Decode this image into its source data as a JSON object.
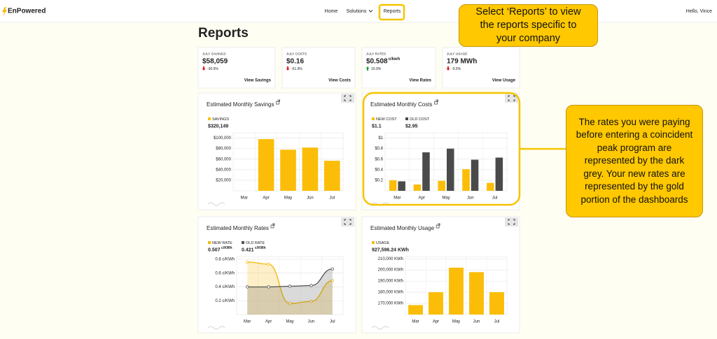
{
  "nav": {
    "brand": "EnPowered",
    "links": [
      "Home",
      "Solutions",
      "Reports"
    ],
    "greeting": "Hello, Vince"
  },
  "page_title": "Reports",
  "kpis": [
    {
      "label": "JULY SAVINGS",
      "value": "$58,059",
      "change": "-30.5%",
      "direction": "down",
      "link": "View Savings"
    },
    {
      "label": "JULY COSTS",
      "value": "$0.16",
      "change": "-61.9%",
      "direction": "down",
      "link": "View Costs"
    },
    {
      "label": "JULY RATES",
      "value": "$0.508",
      "unit": "c/kwh",
      "change": "10.9%",
      "direction": "up",
      "link": "View Rates"
    },
    {
      "label": "JULY USAGE",
      "value": "179 MWh",
      "change": "-9.5%",
      "direction": "down",
      "link": "View Usage"
    }
  ],
  "chart_data": [
    {
      "type": "bar",
      "title": "Estimated Monthly Savings",
      "categories": [
        "Mar",
        "Apr",
        "May",
        "Jun",
        "Jul"
      ],
      "series": [
        {
          "name": "SAVINGS",
          "legend_value": "$320,149",
          "color": "#fbbd08",
          "values": [
            0,
            98000,
            78000,
            82000,
            57000
          ]
        }
      ],
      "ylim": [
        0,
        110000
      ],
      "yticks": [
        {
          "value": 20000,
          "label": "$20,000"
        },
        {
          "value": 40000,
          "label": "$40,000"
        },
        {
          "value": 60000,
          "label": "$60,000"
        },
        {
          "value": 80000,
          "label": "$80,000"
        },
        {
          "value": 100000,
          "label": "$100,000"
        }
      ],
      "grid": true
    },
    {
      "type": "bar",
      "title": "Estimated Monthly Costs",
      "categories": [
        "Mar",
        "Apr",
        "May",
        "Jun",
        "Jul"
      ],
      "series": [
        {
          "name": "NEW COST",
          "legend_value": "$1.1",
          "color": "#fbbd08",
          "values": [
            0.2,
            0.12,
            0.19,
            0.41,
            0.15
          ]
        },
        {
          "name": "OLD COST",
          "legend_value": "$2.95",
          "color": "#4a4a4a",
          "values": [
            0.18,
            0.73,
            0.8,
            0.59,
            0.63
          ]
        }
      ],
      "ylim": [
        0,
        1.1
      ],
      "yticks": [
        {
          "value": 0.2,
          "label": "$0.2"
        },
        {
          "value": 0.4,
          "label": "$0.4"
        },
        {
          "value": 0.6,
          "label": "$0.6"
        },
        {
          "value": 0.8,
          "label": "$0.8"
        },
        {
          "value": 1,
          "label": "$1"
        }
      ],
      "grid": true
    },
    {
      "type": "line",
      "title": "Estimated Monthly Rates",
      "categories": [
        "Mar",
        "Apr",
        "May",
        "Jun",
        "Jul"
      ],
      "series": [
        {
          "name": "NEW RATE",
          "legend_value": "0.507",
          "legend_unit": "c/KWh",
          "color": "#f5b800",
          "values": [
            0.76,
            0.73,
            0.16,
            0.19,
            0.49
          ]
        },
        {
          "name": "OLD RATE",
          "legend_value": "0.421",
          "legend_unit": "c/KWh",
          "color": "#555555",
          "values": [
            0.4,
            0.4,
            0.41,
            0.42,
            0.66
          ]
        }
      ],
      "ylim": [
        0,
        0.84
      ],
      "yticks": [
        {
          "value": 0.2,
          "label": "0.2 c/KWh"
        },
        {
          "value": 0.4,
          "label": "0.4 c/KWh"
        },
        {
          "value": 0.6,
          "label": "0.6 c/KWh"
        },
        {
          "value": 0.8,
          "label": "0.8 c/KWh"
        }
      ],
      "grid": true
    },
    {
      "type": "bar",
      "title": "Estimated Monthly Usage",
      "categories": [
        "Mar",
        "Apr",
        "May",
        "Jun",
        "Jul"
      ],
      "series": [
        {
          "name": "USAGE",
          "legend_value": "927,596.24 KWh",
          "color": "#fbbd08",
          "values": [
            168500,
            180000,
            202000,
            198000,
            180000
          ]
        }
      ],
      "ylim": [
        160000,
        212000
      ],
      "yticks": [
        {
          "value": 170000,
          "label": "170,000 KWh"
        },
        {
          "value": 180000,
          "label": "180,000 KWh"
        },
        {
          "value": 190000,
          "label": "190,000 KWh"
        },
        {
          "value": 200000,
          "label": "200,000 KWh"
        },
        {
          "value": 210000,
          "label": "210,000 KWh"
        }
      ],
      "grid": true
    }
  ],
  "annotations": [
    {
      "text": "Select ‘Reports’ to view the reports specific to your company"
    },
    {
      "text": "The rates you were paying before entering a coincident peak program are represented  by the dark grey. Your new rates are represented  by the gold portion of the dashboards"
    }
  ]
}
